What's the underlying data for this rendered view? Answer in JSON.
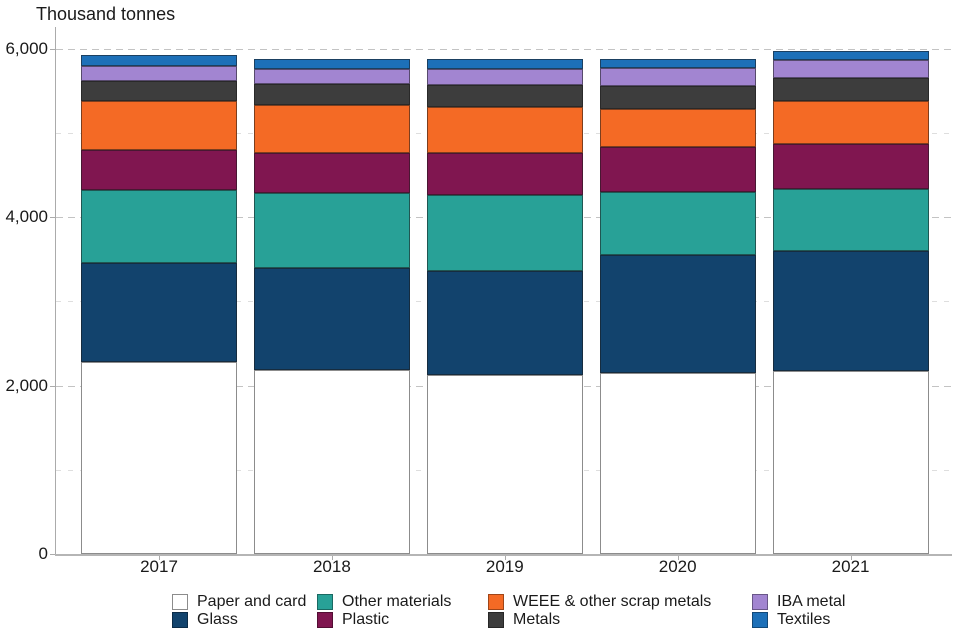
{
  "chart_data": {
    "type": "bar",
    "stacked": true,
    "title": "Thousand tonnes",
    "xlabel": "",
    "ylabel": "Thousand tonnes",
    "categories": [
      "2017",
      "2018",
      "2019",
      "2020",
      "2021"
    ],
    "series": [
      {
        "name": "Paper and card",
        "color": "#FFFFFF",
        "border_color": "#8C8C8C",
        "values": [
          2280,
          2180,
          2130,
          2150,
          2170
        ]
      },
      {
        "name": "Glass",
        "color": "#12436D",
        "values": [
          1170,
          1220,
          1230,
          1395,
          1425
        ]
      },
      {
        "name": "Other materials",
        "color": "#28A197",
        "values": [
          870,
          890,
          905,
          750,
          740
        ]
      },
      {
        "name": "Plastic",
        "color": "#801650",
        "values": [
          480,
          470,
          490,
          540,
          530
        ]
      },
      {
        "name": "WEEE & other scrap metals",
        "color": "#F46A25",
        "values": [
          575,
          575,
          550,
          450,
          510
        ]
      },
      {
        "name": "Metals",
        "color": "#3D3D3D",
        "values": [
          240,
          245,
          260,
          270,
          280
        ]
      },
      {
        "name": "IBA metal",
        "color": "#A285D1",
        "values": [
          180,
          175,
          195,
          215,
          205
        ]
      },
      {
        "name": "Textiles",
        "color": "#1D70B8",
        "values": [
          125,
          120,
          120,
          105,
          110
        ]
      }
    ],
    "ylim": [
      0,
      6000
    ],
    "y_ticks": [
      {
        "value": 0,
        "label": "0"
      },
      {
        "value": 2000,
        "label": "2,000"
      },
      {
        "value": 4000,
        "label": "4,000"
      },
      {
        "value": 6000,
        "label": "6,000"
      }
    ],
    "minor_gridlines": [
      1000,
      3000,
      5000
    ],
    "major_gridlines": [
      2000,
      4000,
      6000
    ],
    "grid": "dashed horizontal",
    "legend_position": "bottom",
    "legend_columns": [
      [
        "Paper and card",
        "Glass"
      ],
      [
        "Other materials",
        "Plastic"
      ],
      [
        "WEEE & other scrap metals",
        "Metals"
      ],
      [
        "IBA metal",
        "Textiles"
      ]
    ]
  }
}
